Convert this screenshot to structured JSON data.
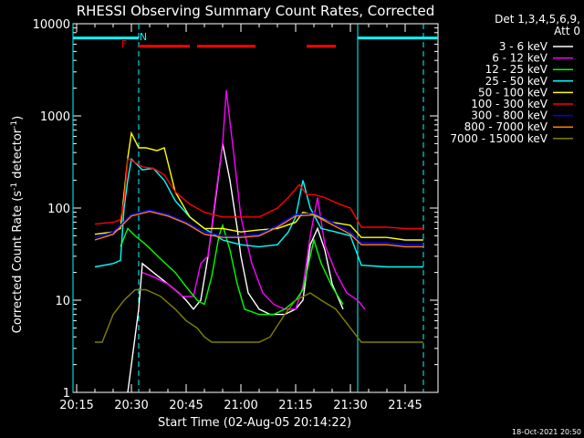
{
  "window": {
    "title": "RHESSI Observing Summary Count Rates, Corrected",
    "footer_timestamp": "18-Oct-2021 20:50"
  },
  "chart_data": {
    "type": "line",
    "title": "RHESSI Observing Summary Count Rates, Corrected",
    "xlabel": "Start Time (02-Aug-05 20:14:22)",
    "ylabel": "Corrected Count Rate (s⁻¹ detector⁻¹)",
    "ylabel_main": "Corrected Count Rate (s",
    "ylabel_sup1": "-1",
    "ylabel_mid": " detector",
    "ylabel_sup2": "-1",
    "ylabel_end": ")",
    "yscale": "log",
    "ylim": [
      1,
      10000
    ],
    "xlim": [
      "20:14",
      "21:54"
    ],
    "xticks": [
      "20:15",
      "20:30",
      "20:45",
      "21:00",
      "21:15",
      "21:30",
      "21:45"
    ],
    "yticks": [
      "1",
      "10",
      "100",
      "1000",
      "10000"
    ],
    "legend": {
      "header": [
        "Det 1,3,4,5,6,9,",
        "Att 0"
      ],
      "placement": "right"
    },
    "series": [
      {
        "name": "3 - 6 keV",
        "color": "#ffffff",
        "x": [
          "20:14",
          "20:27",
          "20:29",
          "20:30",
          "20:31",
          "20:32",
          "20:33",
          "20:36",
          "20:40",
          "20:43",
          "20:45",
          "20:47",
          "20:49",
          "20:51",
          "20:53",
          "20:55",
          "20:57",
          "20:59",
          "21:00",
          "21:02",
          "21:05",
          "21:08",
          "21:12",
          "21:15",
          "21:17",
          "21:19",
          "21:21",
          "21:23",
          "21:25",
          "21:28",
          "21:30"
        ],
        "y": [
          null,
          null,
          1,
          2,
          4,
          8,
          25,
          20,
          15,
          12,
          10,
          8,
          10,
          30,
          120,
          500,
          200,
          60,
          30,
          12,
          8,
          7,
          7,
          8,
          10,
          40,
          60,
          35,
          15,
          8,
          null
        ]
      },
      {
        "name": "6 - 12 keV",
        "color": "#ff00ff",
        "x": [
          "20:14",
          "20:31",
          "20:33",
          "20:36",
          "20:40",
          "20:44",
          "20:47",
          "20:49",
          "20:51",
          "20:53",
          "20:55",
          "20:56",
          "20:58",
          "21:00",
          "21:03",
          "21:06",
          "21:09",
          "21:12",
          "21:15",
          "21:17",
          "21:19",
          "21:21",
          "21:23",
          "21:26",
          "21:29",
          "21:32",
          "21:34",
          "21:35"
        ],
        "y": [
          null,
          null,
          20,
          18,
          15,
          11,
          11,
          25,
          30,
          130,
          500,
          1900,
          400,
          80,
          25,
          12,
          9,
          8,
          8,
          14,
          50,
          130,
          40,
          20,
          12,
          10,
          8,
          null
        ]
      },
      {
        "name": "12 - 25 keV",
        "color": "#00ff00",
        "x": [
          "20:14",
          "20:25",
          "20:27",
          "20:29",
          "20:31",
          "20:34",
          "20:38",
          "20:42",
          "20:45",
          "20:48",
          "20:50",
          "20:52",
          "20:54",
          "20:55",
          "20:57",
          "20:59",
          "21:01",
          "21:05",
          "21:09",
          "21:12",
          "21:15",
          "21:17",
          "21:19",
          "21:20",
          "21:22",
          "21:25",
          "21:28",
          "21:32"
        ],
        "y": [
          null,
          null,
          38,
          60,
          50,
          40,
          28,
          20,
          14,
          10,
          9,
          18,
          50,
          65,
          35,
          15,
          8,
          7,
          7,
          8,
          10,
          13,
          30,
          45,
          25,
          14,
          9,
          null
        ]
      },
      {
        "name": "25 - 50 keV",
        "color": "#00ffff",
        "x": [
          "20:14",
          "20:20",
          "20:25",
          "20:27",
          "20:28",
          "20:29",
          "20:30",
          "20:33",
          "20:36",
          "20:39",
          "20:42",
          "20:46",
          "20:50",
          "20:55",
          "21:00",
          "21:05",
          "21:10",
          "21:13",
          "21:15",
          "21:17",
          "21:19",
          "21:22",
          "21:26",
          "21:30",
          "21:33",
          "21:40",
          "21:45",
          "21:50"
        ],
        "y": [
          null,
          23,
          25,
          27,
          100,
          200,
          340,
          260,
          270,
          200,
          120,
          80,
          60,
          45,
          40,
          38,
          40,
          55,
          80,
          200,
          100,
          60,
          55,
          50,
          24,
          23,
          23,
          23
        ]
      },
      {
        "name": "50 - 100 keV",
        "color": "#ffff00",
        "x": [
          "20:14",
          "20:20",
          "20:25",
          "20:27",
          "20:29",
          "20:30",
          "20:32",
          "20:34",
          "20:37",
          "20:39",
          "20:42",
          "20:46",
          "20:50",
          "20:55",
          "21:00",
          "21:05",
          "21:10",
          "21:15",
          "21:17",
          "21:20",
          "21:25",
          "21:30",
          "21:33",
          "21:40",
          "21:45",
          "21:50"
        ],
        "y": [
          null,
          52,
          55,
          60,
          350,
          650,
          450,
          450,
          420,
          450,
          150,
          80,
          60,
          60,
          55,
          58,
          60,
          70,
          90,
          85,
          70,
          65,
          48,
          48,
          45,
          45
        ]
      },
      {
        "name": "100 - 300 keV",
        "color": "#ff0000",
        "x": [
          "20:14",
          "20:20",
          "20:25",
          "20:27",
          "20:28",
          "20:29",
          "20:30",
          "20:33",
          "20:36",
          "20:39",
          "20:42",
          "20:46",
          "20:50",
          "20:55",
          "21:00",
          "21:05",
          "21:10",
          "21:13",
          "21:16",
          "21:18",
          "21:20",
          "21:23",
          "21:27",
          "21:30",
          "21:33",
          "21:40",
          "21:45",
          "21:50"
        ],
        "y": [
          null,
          67,
          70,
          75,
          120,
          340,
          330,
          280,
          270,
          230,
          150,
          110,
          90,
          80,
          80,
          80,
          100,
          130,
          180,
          140,
          140,
          130,
          110,
          100,
          62,
          62,
          60,
          60
        ]
      },
      {
        "name": "300 - 800 keV",
        "color": "#0000ff",
        "x": [
          "20:14",
          "20:20",
          "20:25",
          "20:30",
          "20:35",
          "20:40",
          "20:45",
          "20:50",
          "20:55",
          "21:00",
          "21:05",
          "21:10",
          "21:15",
          "21:20",
          "21:25",
          "21:30",
          "21:33",
          "21:40",
          "21:45",
          "21:50"
        ],
        "y": [
          null,
          48,
          55,
          85,
          95,
          85,
          70,
          55,
          50,
          50,
          52,
          65,
          85,
          88,
          70,
          55,
          42,
          42,
          40,
          40
        ]
      },
      {
        "name": "800 - 7000 keV",
        "color": "#ff8000",
        "x": [
          "20:14",
          "20:20",
          "20:25",
          "20:30",
          "20:35",
          "20:40",
          "20:45",
          "20:50",
          "20:55",
          "21:00",
          "21:05",
          "21:10",
          "21:15",
          "21:20",
          "21:25",
          "21:30",
          "21:33",
          "21:40",
          "21:45",
          "21:50"
        ],
        "y": [
          null,
          45,
          52,
          82,
          92,
          82,
          68,
          52,
          48,
          48,
          50,
          62,
          82,
          84,
          66,
          52,
          40,
          40,
          38,
          38
        ]
      },
      {
        "name": "7000 - 15000 keV",
        "color": "#808000",
        "x": [
          "20:14",
          "20:20",
          "20:22",
          "20:25",
          "20:28",
          "20:31",
          "20:34",
          "20:38",
          "20:42",
          "20:45",
          "20:48",
          "20:50",
          "20:52",
          "20:55",
          "21:00",
          "21:05",
          "21:08",
          "21:12",
          "21:15",
          "21:19",
          "21:22",
          "21:26",
          "21:30",
          "21:33",
          "21:40",
          "21:45",
          "21:50"
        ],
        "y": [
          null,
          3.5,
          3.5,
          7,
          10,
          13,
          13,
          11,
          8,
          6,
          5,
          4,
          3.5,
          3.5,
          3.5,
          3.5,
          4,
          7,
          10,
          12,
          10,
          8,
          5,
          3.5,
          3.5,
          3.5,
          3.5
        ]
      }
    ],
    "annotations": {
      "flag_letters": [
        {
          "text": "N",
          "color": "#00ffff",
          "x": "20:32"
        },
        {
          "text": "F",
          "color": "#ff0000",
          "x": "20:30"
        }
      ],
      "saa_bars": {
        "color": "#00ffff",
        "ranges": [
          [
            "20:14",
            "20:32"
          ],
          [
            "21:32",
            "21:54"
          ]
        ],
        "y": 7000
      },
      "flare_bars": {
        "color": "#ff0000",
        "ranges": [
          [
            "20:32",
            "20:46"
          ],
          [
            "20:48",
            "21:04"
          ],
          [
            "21:18",
            "21:26"
          ]
        ],
        "y": 5700
      },
      "night_lines": {
        "color": "#00ffff",
        "solid": [
          "20:14",
          "21:32"
        ],
        "dashed": [
          "20:32",
          "21:50"
        ]
      }
    }
  }
}
